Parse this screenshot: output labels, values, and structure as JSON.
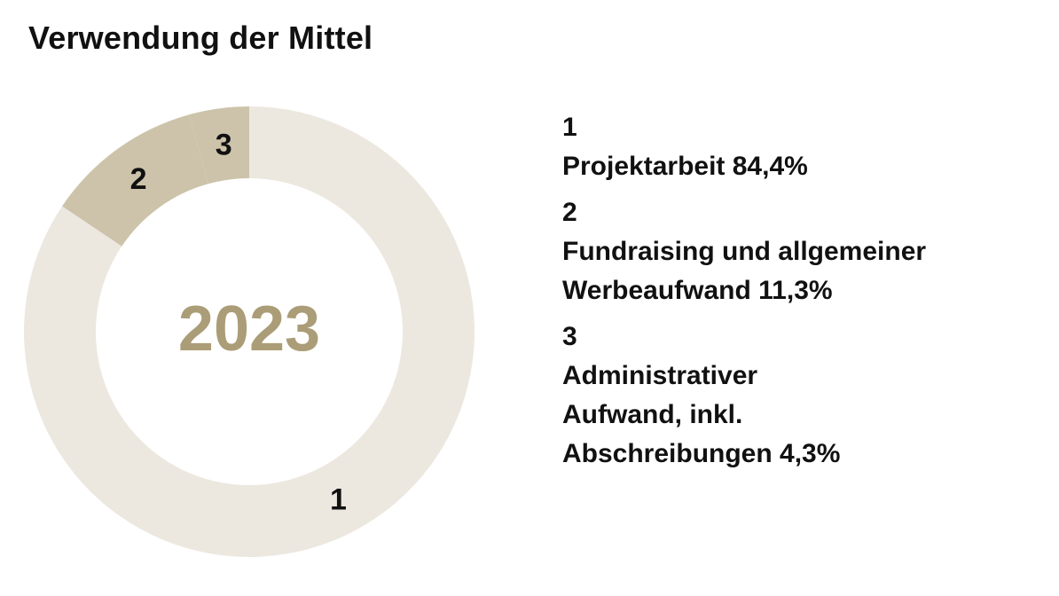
{
  "title": "Verwendung der Mittel",
  "colors": {
    "segment_1": "#ece8df",
    "segment_2": "#ccc3aa",
    "segment_3": "#ccc3aa",
    "center_text": "#ab9d77"
  },
  "chart_data": {
    "type": "pie",
    "title": "Verwendung der Mittel",
    "center_label": "2023",
    "slices": [
      {
        "label": "1",
        "name": "Projektarbeit",
        "value": 84.4,
        "value_label": "84,4%"
      },
      {
        "label": "2",
        "name": "Fundraising und allgemeiner Werbeaufwand",
        "value": 11.3,
        "value_label": "11,3%"
      },
      {
        "label": "3",
        "name": "Administrativer Aufwand, inkl. Abschreibungen",
        "value": 4.3,
        "value_label": "4,3%"
      }
    ]
  },
  "legend": [
    {
      "number": "1",
      "lines": [
        "Projektarbeit 84,4%"
      ]
    },
    {
      "number": "2",
      "lines": [
        "Fundraising und allgemeiner",
        "Werbeaufwand 11,3%"
      ]
    },
    {
      "number": "3",
      "lines": [
        "Administrativer",
        "Aufwand, inkl.",
        "Abschreibungen 4,3%"
      ]
    }
  ]
}
